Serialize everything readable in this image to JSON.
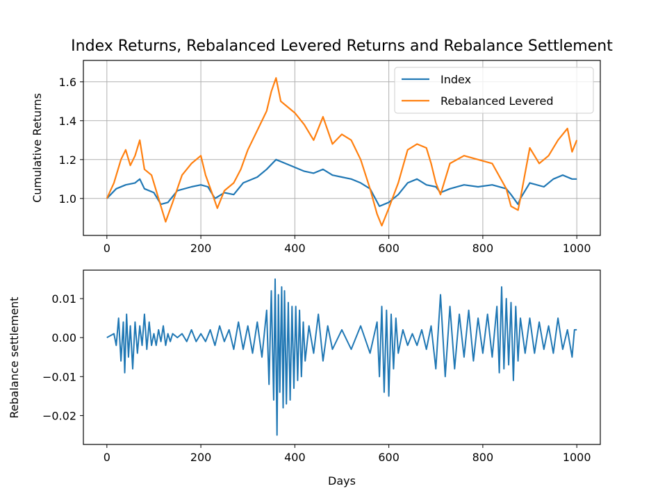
{
  "colors": {
    "index": "#1f77b4",
    "levered": "#ff7f0e",
    "settlement": "#1f77b4",
    "grid": "#b0b0b0",
    "axes": "#000000"
  },
  "chart_data": [
    {
      "type": "line",
      "title": "Index Returns, Rebalanced Levered Returns and Rebalance Settlement",
      "xlabel": "",
      "ylabel": "Cumulative Returns",
      "xlim": [
        -50,
        1050
      ],
      "ylim": [
        0.81,
        1.71
      ],
      "xticks": [
        0,
        200,
        400,
        600,
        800,
        1000
      ],
      "xtick_labels": [
        "0",
        "200",
        "400",
        "600",
        "800",
        "1000"
      ],
      "yticks": [
        1.0,
        1.2,
        1.4,
        1.6
      ],
      "ytick_labels": [
        "1.0",
        "1.2",
        "1.4",
        "1.6"
      ],
      "grid": true,
      "legend": "top-right",
      "series": [
        {
          "name": "Index",
          "x": [
            0,
            20,
            40,
            60,
            70,
            80,
            100,
            115,
            130,
            150,
            180,
            200,
            215,
            230,
            250,
            270,
            290,
            320,
            340,
            360,
            380,
            400,
            420,
            440,
            460,
            480,
            500,
            520,
            540,
            560,
            580,
            590,
            600,
            620,
            640,
            660,
            680,
            700,
            710,
            730,
            760,
            790,
            820,
            850,
            860,
            875,
            880,
            900,
            930,
            950,
            970,
            990,
            1000
          ],
          "values": [
            1.0,
            1.05,
            1.07,
            1.08,
            1.1,
            1.05,
            1.03,
            0.97,
            0.98,
            1.04,
            1.06,
            1.07,
            1.06,
            1.0,
            1.03,
            1.02,
            1.08,
            1.11,
            1.15,
            1.2,
            1.18,
            1.16,
            1.14,
            1.13,
            1.15,
            1.12,
            1.11,
            1.1,
            1.08,
            1.05,
            0.96,
            0.97,
            0.98,
            1.02,
            1.08,
            1.1,
            1.07,
            1.06,
            1.03,
            1.05,
            1.07,
            1.06,
            1.07,
            1.05,
            1.02,
            0.97,
            1.0,
            1.08,
            1.06,
            1.1,
            1.12,
            1.1,
            1.1
          ]
        },
        {
          "name": "Rebalanced Levered",
          "x": [
            0,
            15,
            30,
            40,
            50,
            60,
            70,
            80,
            95,
            110,
            125,
            140,
            160,
            180,
            200,
            210,
            225,
            235,
            250,
            270,
            285,
            300,
            320,
            340,
            350,
            360,
            370,
            380,
            400,
            420,
            440,
            460,
            480,
            500,
            520,
            540,
            560,
            575,
            585,
            600,
            620,
            640,
            660,
            680,
            690,
            700,
            710,
            730,
            760,
            790,
            820,
            850,
            860,
            875,
            880,
            900,
            920,
            940,
            960,
            980,
            990,
            1000
          ],
          "values": [
            1.0,
            1.08,
            1.2,
            1.25,
            1.17,
            1.22,
            1.3,
            1.15,
            1.12,
            1.0,
            0.88,
            0.98,
            1.12,
            1.18,
            1.22,
            1.12,
            1.02,
            0.95,
            1.04,
            1.08,
            1.15,
            1.25,
            1.35,
            1.45,
            1.55,
            1.62,
            1.5,
            1.48,
            1.44,
            1.38,
            1.3,
            1.42,
            1.28,
            1.33,
            1.3,
            1.2,
            1.05,
            0.92,
            0.86,
            0.95,
            1.08,
            1.25,
            1.28,
            1.26,
            1.18,
            1.08,
            1.02,
            1.18,
            1.22,
            1.2,
            1.18,
            1.05,
            0.96,
            0.94,
            1.0,
            1.26,
            1.18,
            1.22,
            1.3,
            1.36,
            1.24,
            1.3
          ]
        }
      ]
    },
    {
      "type": "line",
      "title": "",
      "xlabel": "Days",
      "ylabel": "Rebalance settlement",
      "xlim": [
        -50,
        1050
      ],
      "ylim": [
        -0.0274,
        0.0173
      ],
      "xticks": [
        0,
        200,
        400,
        600,
        800,
        1000
      ],
      "xtick_labels": [
        "0",
        "200",
        "400",
        "600",
        "800",
        "1000"
      ],
      "yticks": [
        0.01,
        0.0,
        -0.01,
        -0.02
      ],
      "ytick_labels": [
        "0.01",
        "0.00",
        "−0.01",
        "−0.02"
      ],
      "grid": false,
      "series": [
        {
          "name": "Rebalance settlement",
          "x": [
            0,
            15,
            20,
            25,
            30,
            35,
            38,
            42,
            46,
            50,
            55,
            60,
            65,
            70,
            75,
            80,
            85,
            90,
            95,
            100,
            105,
            110,
            115,
            120,
            125,
            130,
            135,
            140,
            150,
            160,
            170,
            180,
            190,
            200,
            210,
            220,
            230,
            240,
            250,
            260,
            270,
            280,
            290,
            300,
            310,
            320,
            330,
            340,
            345,
            350,
            355,
            358,
            362,
            365,
            368,
            372,
            375,
            378,
            382,
            386,
            390,
            394,
            398,
            402,
            406,
            410,
            414,
            418,
            422,
            430,
            440,
            450,
            460,
            470,
            480,
            500,
            520,
            540,
            560,
            575,
            580,
            585,
            590,
            595,
            600,
            605,
            610,
            615,
            620,
            630,
            640,
            650,
            660,
            670,
            680,
            690,
            700,
            710,
            720,
            730,
            740,
            750,
            760,
            770,
            780,
            790,
            800,
            810,
            820,
            830,
            835,
            840,
            845,
            850,
            855,
            860,
            865,
            870,
            875,
            880,
            890,
            900,
            910,
            920,
            930,
            940,
            950,
            960,
            970,
            980,
            990,
            995,
            1000
          ],
          "values": [
            0.0,
            0.001,
            -0.002,
            0.005,
            -0.006,
            0.004,
            -0.009,
            0.006,
            -0.005,
            0.003,
            -0.008,
            0.004,
            -0.004,
            0.003,
            -0.002,
            0.006,
            -0.003,
            0.004,
            -0.002,
            0.001,
            -0.002,
            0.002,
            -0.001,
            0.003,
            -0.002,
            0.001,
            -0.001,
            0.001,
            0.0,
            0.001,
            -0.001,
            0.002,
            -0.001,
            0.001,
            -0.001,
            0.002,
            -0.002,
            0.003,
            -0.001,
            0.002,
            -0.003,
            0.004,
            -0.003,
            0.003,
            -0.004,
            0.004,
            -0.005,
            0.007,
            -0.012,
            0.012,
            -0.016,
            0.015,
            -0.025,
            0.011,
            -0.014,
            0.013,
            -0.018,
            0.012,
            -0.017,
            0.009,
            -0.016,
            0.008,
            -0.013,
            0.008,
            -0.011,
            0.007,
            -0.01,
            0.004,
            -0.006,
            0.003,
            -0.004,
            0.006,
            -0.006,
            0.003,
            -0.003,
            0.002,
            -0.003,
            0.003,
            -0.004,
            0.004,
            -0.01,
            0.008,
            -0.014,
            0.007,
            -0.015,
            0.006,
            -0.008,
            0.005,
            -0.004,
            0.002,
            -0.002,
            0.001,
            -0.002,
            0.002,
            -0.003,
            0.003,
            -0.008,
            0.011,
            -0.01,
            0.008,
            -0.008,
            0.006,
            -0.005,
            0.007,
            -0.006,
            0.005,
            -0.004,
            0.006,
            -0.005,
            0.008,
            -0.009,
            0.013,
            -0.008,
            0.01,
            -0.007,
            0.009,
            -0.011,
            0.008,
            -0.006,
            0.005,
            -0.004,
            0.005,
            -0.004,
            0.004,
            -0.003,
            0.003,
            -0.004,
            0.005,
            -0.003,
            0.002,
            -0.005,
            0.002,
            0.002
          ]
        }
      ]
    }
  ]
}
